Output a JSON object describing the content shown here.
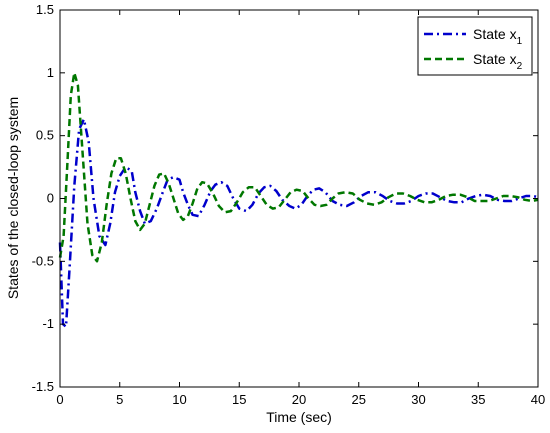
{
  "chart_data": {
    "type": "line",
    "title": "",
    "xlabel": "Time (sec)",
    "ylabel": "States of the closed-loop system",
    "xlim": [
      0,
      40
    ],
    "ylim": [
      -1.5,
      1.5
    ],
    "x_ticks": [
      0,
      5,
      10,
      15,
      20,
      25,
      30,
      35,
      40
    ],
    "y_ticks": [
      -1.5,
      -1,
      -0.5,
      0,
      0.5,
      1,
      1.5
    ],
    "x_tick_labels": [
      "0",
      "5",
      "10",
      "15",
      "20",
      "25",
      "30",
      "35",
      "40"
    ],
    "y_tick_labels": [
      "-1.5",
      "-1",
      "-0.5",
      "0",
      "0.5",
      "1",
      "1.5"
    ],
    "grid": false,
    "legend_position": "top-right",
    "series": [
      {
        "name_base": "State x",
        "name_sub": "1",
        "color": "#0000cc",
        "style": "dashdot",
        "x": [
          0,
          0.25,
          0.5,
          0.8,
          1.2,
          1.6,
          2.0,
          2.4,
          2.8,
          3.3,
          3.8,
          4.2,
          4.6,
          5.0,
          5.5,
          6.0,
          6.3,
          6.7,
          7.1,
          7.6,
          8.1,
          8.6,
          9.0,
          9.5,
          10.0,
          10.3,
          10.7,
          11.1,
          11.6,
          12.1,
          12.6,
          13.0,
          13.5,
          14.0,
          14.5,
          15.0,
          15.6,
          16.1,
          16.6,
          17.1,
          17.6,
          18.1,
          18.6,
          19.2,
          19.7,
          20.2,
          20.7,
          21.2,
          21.7,
          22.2,
          22.8,
          23.4,
          24.0,
          24.6,
          25.2,
          25.8,
          26.4,
          27.0,
          27.6,
          28.2,
          28.8,
          29.4,
          30.0,
          30.6,
          31.2,
          31.8,
          32.4,
          33.0,
          33.6,
          34.2,
          34.8,
          35.4,
          36.0,
          36.6,
          37.2,
          37.8,
          38.4,
          39.0,
          39.6,
          40.0
        ],
        "y": [
          -0.35,
          -1.0,
          -1.02,
          -0.55,
          0.1,
          0.55,
          0.63,
          0.45,
          0.0,
          -0.3,
          -0.37,
          -0.2,
          0.05,
          0.18,
          0.25,
          0.22,
          0.05,
          -0.1,
          -0.2,
          -0.18,
          -0.08,
          0.05,
          0.15,
          0.17,
          0.15,
          0.05,
          -0.05,
          -0.13,
          -0.14,
          -0.05,
          0.06,
          0.11,
          0.13,
          0.1,
          0.0,
          -0.08,
          -0.1,
          -0.05,
          0.04,
          0.09,
          0.1,
          0.06,
          -0.01,
          -0.06,
          -0.08,
          -0.05,
          0.02,
          0.07,
          0.08,
          0.05,
          -0.02,
          -0.05,
          -0.06,
          -0.03,
          0.02,
          0.05,
          0.05,
          0.02,
          -0.02,
          -0.04,
          -0.04,
          -0.02,
          0.02,
          0.04,
          0.04,
          0.01,
          -0.02,
          -0.03,
          -0.03,
          0.0,
          0.02,
          0.03,
          0.02,
          -0.01,
          -0.02,
          -0.02,
          0.0,
          0.02,
          0.02,
          0.01
        ]
      },
      {
        "name_base": "State x",
        "name_sub": "2",
        "color": "#007700",
        "style": "dashed",
        "x": [
          0,
          0.3,
          0.6,
          0.9,
          1.2,
          1.5,
          1.9,
          2.3,
          2.7,
          3.1,
          3.5,
          3.9,
          4.3,
          4.7,
          5.1,
          5.5,
          5.9,
          6.3,
          6.7,
          7.1,
          7.5,
          7.9,
          8.3,
          8.7,
          9.1,
          9.5,
          9.9,
          10.3,
          10.7,
          11.1,
          11.5,
          11.9,
          12.3,
          12.8,
          13.3,
          13.8,
          14.3,
          14.8,
          15.3,
          15.8,
          16.3,
          16.8,
          17.3,
          17.8,
          18.3,
          18.8,
          19.3,
          19.8,
          20.3,
          20.8,
          21.3,
          21.8,
          22.3,
          22.8,
          23.3,
          23.9,
          24.5,
          25.1,
          25.7,
          26.3,
          26.9,
          27.5,
          28.1,
          28.7,
          29.3,
          29.9,
          30.5,
          31.1,
          31.7,
          32.3,
          32.9,
          33.5,
          34.1,
          34.7,
          35.3,
          35.9,
          36.5,
          37.1,
          37.7,
          38.3,
          38.9,
          39.5,
          40.0
        ],
        "y": [
          -0.47,
          -0.3,
          0.25,
          0.82,
          1.0,
          0.9,
          0.35,
          -0.2,
          -0.45,
          -0.5,
          -0.35,
          -0.05,
          0.2,
          0.32,
          0.32,
          0.2,
          0.0,
          -0.18,
          -0.25,
          -0.2,
          -0.05,
          0.1,
          0.19,
          0.2,
          0.12,
          0.0,
          -0.12,
          -0.17,
          -0.14,
          -0.04,
          0.08,
          0.13,
          0.12,
          0.04,
          -0.06,
          -0.11,
          -0.1,
          -0.03,
          0.05,
          0.09,
          0.09,
          0.02,
          -0.05,
          -0.08,
          -0.07,
          -0.01,
          0.05,
          0.07,
          0.06,
          0.0,
          -0.05,
          -0.06,
          -0.05,
          0.0,
          0.04,
          0.05,
          0.04,
          -0.01,
          -0.04,
          -0.05,
          -0.03,
          0.01,
          0.04,
          0.04,
          0.02,
          -0.01,
          -0.03,
          -0.03,
          -0.01,
          0.02,
          0.03,
          0.03,
          0.01,
          -0.02,
          -0.02,
          -0.02,
          0.0,
          0.02,
          0.02,
          0.01,
          -0.01,
          -0.02,
          -0.01
        ]
      }
    ]
  }
}
